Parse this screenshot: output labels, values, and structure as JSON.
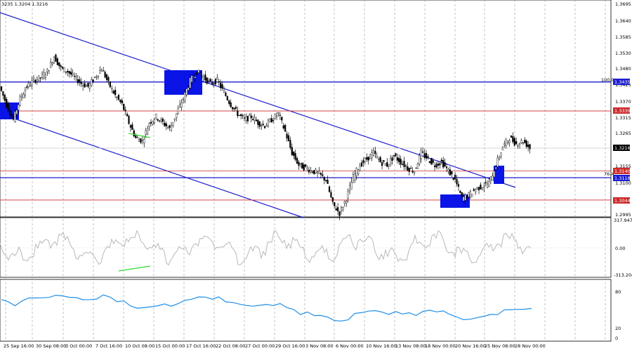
{
  "header": {
    "quote_text": "3235 1.3204 1.3216"
  },
  "colors": {
    "background": "#ffffff",
    "grid": "#9a9a9a",
    "channel": "#1c1ccf",
    "hline_blue": "#1c1ccf",
    "hline_red": "#cc2a2a",
    "box": "#0a14e6",
    "candle": "#000000",
    "cci_line": "#b8b8b8",
    "rsi_line": "#1e8fe8",
    "divergence": "#33dd33"
  },
  "price_axis": {
    "ticks": [
      "1.3695",
      "1.3640",
      "1.3585",
      "1.3530",
      "1.3480",
      "1.3425",
      "1.3370",
      "1.3315",
      "1.3265",
      "1.3155",
      "1.3100",
      "1.2995"
    ],
    "tags": {
      "t1": {
        "text": "1.3435",
        "color": "#1c1ccf"
      },
      "t2": {
        "text": "1.3339",
        "color": "#cc2a2a"
      },
      "t3": {
        "text": "1.3216",
        "color": "#000000"
      },
      "t4": {
        "text": "1.3140",
        "color": "#cc2a2a"
      },
      "t5": {
        "text": "1.3118",
        "color": "#1c1ccf"
      },
      "t6": {
        "text": "1.3044",
        "color": "#cc2a2a"
      }
    },
    "fib_100": "100.0",
    "fib_76": "76.4"
  },
  "cci_axis": {
    "top": "317.9471",
    "mid": "0.00",
    "bottom": "-313.204"
  },
  "rsi_axis": {
    "top": "80",
    "bottom": "20",
    "zero": "0"
  },
  "time_axis": {
    "labels": [
      "25 Sep 16:00",
      "30 Sep 08:00",
      "3 Oct 00:00",
      "7 Oct 16:00",
      "10 Oct 08:00",
      "15 Oct 00:00",
      "17 Oct 16:00",
      "22 Oct 08:00",
      "27 Oct 00:00",
      "29 Oct 16:00",
      "3 Nov 08:00",
      "6 Nov 00:00",
      "10 Nov 16:00",
      "13 Nov 08:00",
      "18 Nov 00:00",
      "20 Nov 16:00",
      "25 Nov 08:00",
      "28 Nov 00:00"
    ]
  },
  "chart_data": {
    "type": "line",
    "symbol_quote": "1.3216",
    "price_range": [
      1.2995,
      1.3695
    ],
    "horizontal_levels": [
      {
        "value": 1.3435,
        "color": "#1c1ccf"
      },
      {
        "value": 1.3339,
        "color": "#cc2a2a"
      },
      {
        "value": 1.314,
        "color": "#cc2a2a"
      },
      {
        "value": 1.3118,
        "color": "#1c1ccf"
      },
      {
        "value": 1.3044,
        "color": "#cc2a2a"
      }
    ],
    "price_series": [
      1.342,
      1.336,
      1.331,
      1.338,
      1.342,
      1.344,
      1.345,
      1.347,
      1.352,
      1.348,
      1.347,
      1.345,
      1.343,
      1.342,
      1.345,
      1.348,
      1.343,
      1.339,
      1.336,
      1.33,
      1.325,
      1.324,
      1.33,
      1.332,
      1.33,
      1.328,
      1.333,
      1.338,
      1.344,
      1.347,
      1.345,
      1.343,
      1.344,
      1.34,
      1.336,
      1.333,
      1.331,
      1.332,
      1.33,
      1.329,
      1.331,
      1.333,
      1.327,
      1.32,
      1.316,
      1.315,
      1.314,
      1.313,
      1.311,
      1.303,
      1.3,
      1.305,
      1.312,
      1.316,
      1.318,
      1.32,
      1.317,
      1.316,
      1.319,
      1.317,
      1.315,
      1.314,
      1.32,
      1.318,
      1.316,
      1.317,
      1.314,
      1.311,
      1.305,
      1.306,
      1.308,
      1.309,
      1.31,
      1.316,
      1.322,
      1.325,
      1.323,
      1.324,
      1.3216
    ],
    "cci_range": [
      -313.204,
      317.9471
    ],
    "rsi_range": [
      0,
      100
    ]
  }
}
